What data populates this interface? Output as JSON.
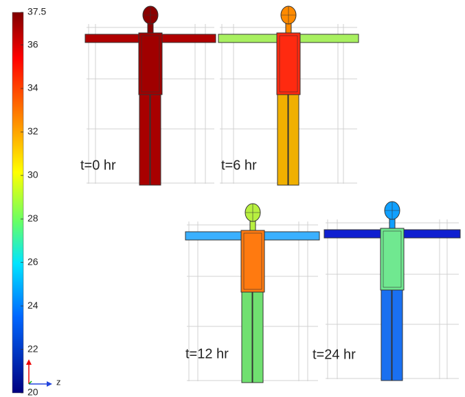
{
  "colorbar": {
    "range": [
      20,
      37.5
    ],
    "ticks": [
      20,
      22,
      24,
      26,
      28,
      30,
      32,
      34,
      36,
      37.5
    ]
  },
  "axis_label": "z",
  "panels": [
    {
      "label": "t=0 hr"
    },
    {
      "label": "t=6 hr"
    },
    {
      "label": "t=12 hr"
    },
    {
      "label": "t=24 hr"
    }
  ]
}
